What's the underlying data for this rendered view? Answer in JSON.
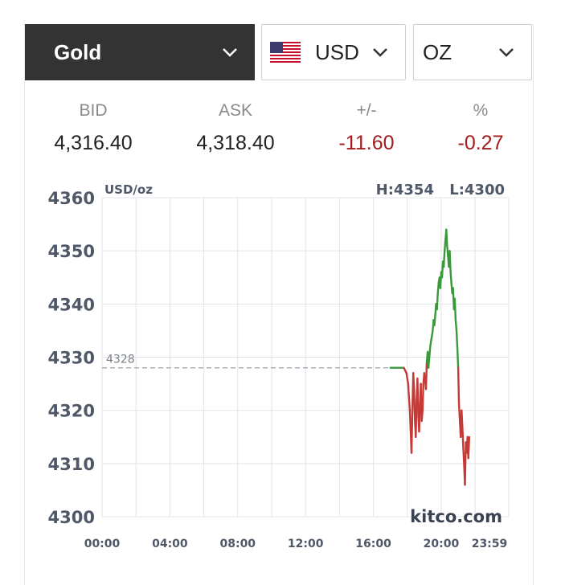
{
  "selectors": {
    "metal": "Gold",
    "currency": "USD",
    "unit": "OZ"
  },
  "quote": {
    "bid_label": "BID",
    "bid": "4,316.40",
    "ask_label": "ASK",
    "ask": "4,318.40",
    "change_label": "+/-",
    "change": "-11.60",
    "pct_label": "%",
    "pct": "-0.27"
  },
  "colors": {
    "up": "#3a9a3a",
    "down": "#c43a36",
    "negative_text": "#a11d1d",
    "selector_dark": "#333333"
  },
  "chart_data": {
    "type": "line",
    "unit_label": "USD/oz",
    "high_label": "H:4354",
    "low_label": "L:4300",
    "reference_value": 4328,
    "reference_label": "4328",
    "watermark": "kitco.com",
    "ylim": [
      4300,
      4360
    ],
    "y_ticks": [
      "4360",
      "4350",
      "4340",
      "4330",
      "4320",
      "4310",
      "4300"
    ],
    "x_ticks": [
      "00:00",
      "04:00",
      "08:00",
      "12:00",
      "16:00",
      "20:00",
      "23:59"
    ],
    "grid": true,
    "x_hours": [
      17.0,
      17.3,
      17.6,
      17.8,
      17.95,
      18.05,
      18.15,
      18.2,
      18.25,
      18.3,
      18.35,
      18.4,
      18.45,
      18.5,
      18.55,
      18.6,
      18.65,
      18.7,
      18.75,
      18.8,
      18.85,
      18.9,
      18.95,
      19.0,
      19.05,
      19.1,
      19.15,
      19.2,
      19.25,
      19.3,
      19.35,
      19.4,
      19.45,
      19.5,
      19.55,
      19.6,
      19.65,
      19.7,
      19.75,
      19.8,
      19.85,
      19.9,
      19.95,
      20.0,
      20.05,
      20.1,
      20.15,
      20.2,
      20.25,
      20.3,
      20.35,
      20.4,
      20.45,
      20.5,
      20.55,
      20.6,
      20.65,
      20.7,
      20.75,
      20.8,
      20.85,
      20.9,
      20.95,
      21.0,
      21.05,
      21.1,
      21.15,
      21.2,
      21.25,
      21.3,
      21.35,
      21.4,
      21.45,
      21.5,
      21.55,
      21.6,
      21.65
    ],
    "prices": [
      4328,
      4328,
      4328,
      4328,
      4327,
      4325,
      4320,
      4316,
      4312,
      4320,
      4327,
      4324,
      4318,
      4315,
      4322,
      4326,
      4319,
      4316,
      4321,
      4325,
      4318,
      4320,
      4325,
      4327,
      4326,
      4324,
      4329,
      4331,
      4328,
      4330,
      4332,
      4333,
      4334,
      4335,
      4337,
      4336,
      4338,
      4340,
      4339,
      4342,
      4344,
      4345,
      4343,
      4346,
      4345,
      4348,
      4347,
      4350,
      4352,
      4354,
      4351,
      4349,
      4347,
      4350,
      4346,
      4344,
      4342,
      4343,
      4339,
      4341,
      4337,
      4335,
      4332,
      4328,
      4321,
      4318,
      4315,
      4320,
      4317,
      4313,
      4310,
      4306,
      4314,
      4312,
      4315,
      4311,
      4315
    ]
  }
}
